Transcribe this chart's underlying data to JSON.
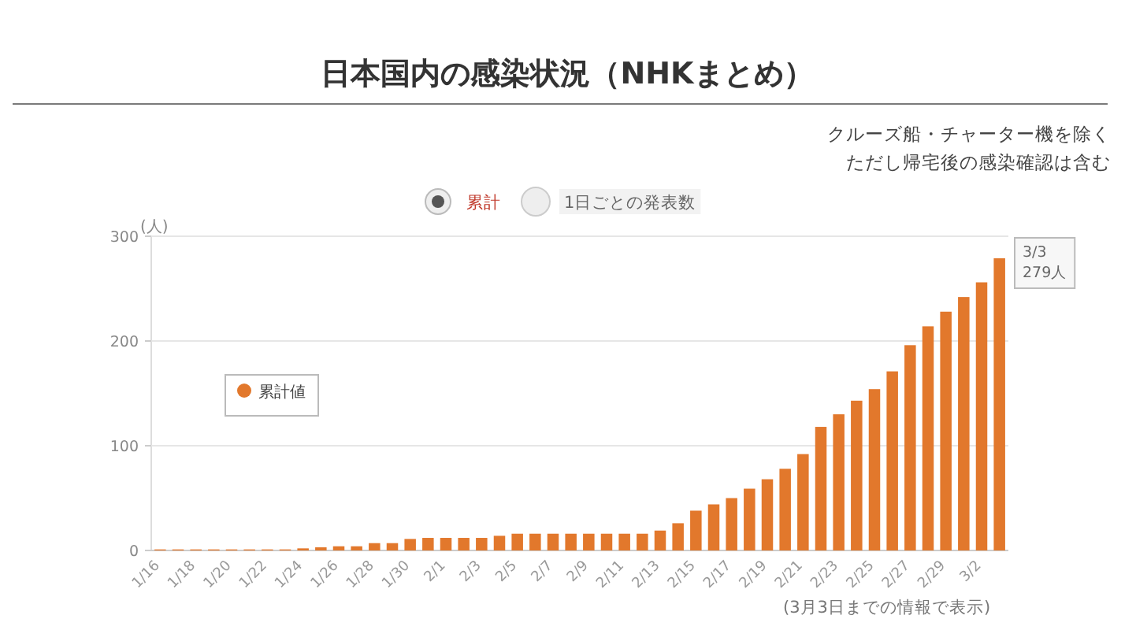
{
  "chart_data": {
    "type": "bar",
    "title": "日本国内の感染状況（NHKまとめ）",
    "ylabel": "(人)",
    "annotations": [
      "クルーズ船・チャーター機を除く",
      "ただし帰宅後の感染確認は含む",
      "累計",
      "1日ごとの発表数",
      "(3月3日までの情報で表示)",
      "3/3 279人"
    ],
    "categories": [
      "1/16",
      null,
      "1/18",
      null,
      "1/20",
      null,
      "1/22",
      null,
      "1/24",
      null,
      "1/26",
      null,
      "1/28",
      null,
      "1/30",
      null,
      "2/1",
      null,
      "2/3",
      null,
      "2/5",
      null,
      "2/7",
      null,
      "2/9",
      null,
      "2/11",
      null,
      "2/13",
      null,
      "2/15",
      null,
      "2/17",
      null,
      "2/19",
      null,
      "2/21",
      null,
      "2/23",
      null,
      "2/25",
      null,
      "2/27",
      null,
      "2/29",
      null,
      "3/2",
      null
    ],
    "series": [
      {
        "name": "累計値",
        "color": "#e2782c",
        "values": [
          1,
          1,
          1,
          1,
          1,
          1,
          1,
          1,
          2,
          3,
          4,
          4,
          7,
          7,
          11,
          12,
          12,
          12,
          12,
          14,
          16,
          16,
          16,
          16,
          16,
          16,
          16,
          16,
          19,
          26,
          38,
          44,
          50,
          59,
          68,
          78,
          92,
          118,
          130,
          143,
          154,
          171,
          196,
          214,
          228,
          242,
          256,
          279
        ]
      }
    ],
    "ylim": [
      0,
      300
    ],
    "yticks": [
      0,
      100,
      200,
      300
    ],
    "grid": "y",
    "legend": "left"
  }
}
